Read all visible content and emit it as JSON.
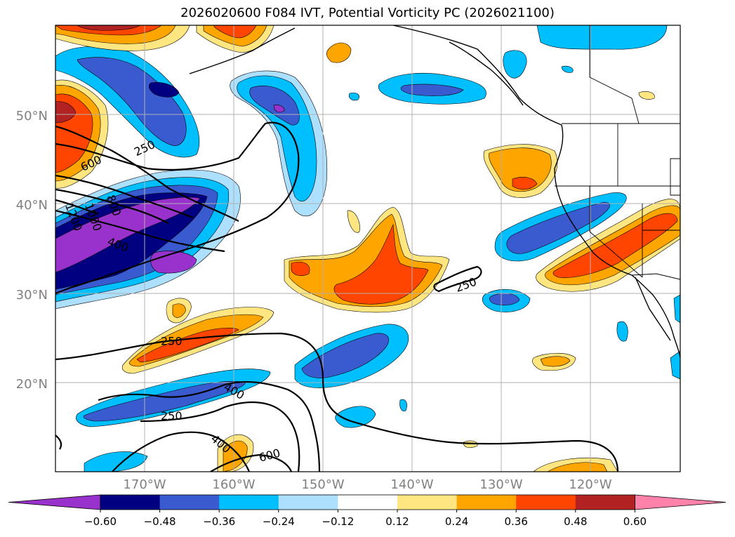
{
  "title": "2026020600 F084 IVT, Potential Vorticity PC (2026021100)",
  "map": {
    "lon_range": [
      -180,
      -110
    ],
    "lat_range": [
      10,
      60
    ],
    "lon_ticks": [
      -170,
      -160,
      -150,
      -140,
      -130,
      -120
    ],
    "lat_ticks": [
      20,
      30,
      40,
      50
    ],
    "lon_labels": [
      "170°W",
      "160°W",
      "150°W",
      "140°W",
      "130°W",
      "120°W"
    ],
    "lat_labels": [
      "20°N",
      "30°N",
      "40°N",
      "50°N"
    ]
  },
  "colorbar": {
    "levels": [
      -0.72,
      -0.6,
      -0.48,
      -0.36,
      -0.24,
      -0.12,
      0.12,
      0.24,
      0.36,
      0.48,
      0.6,
      0.72
    ],
    "colors": [
      "#9932CC",
      "#000080",
      "#3A5BCF",
      "#00BFFF",
      "#ADDFFF",
      "#FFFFFF",
      "#FFE680",
      "#FFA500",
      "#FF4500",
      "#B22222",
      "#FF82AB"
    ],
    "tick_labels": [
      "−0.60",
      "−0.48",
      "−0.36",
      "−0.24",
      "−0.12",
      "0.12",
      "0.24",
      "0.36",
      "0.48",
      "0.60"
    ]
  },
  "contours": {
    "labels": [
      {
        "text": "250",
        "lon": -170.0,
        "lat": 46.2,
        "angle": 25
      },
      {
        "text": "600",
        "lon": -176.0,
        "lat": 44.5,
        "angle": 25
      },
      {
        "text": "1000",
        "lon": -175.8,
        "lat": 38.5,
        "angle": -70
      },
      {
        "text": "800",
        "lon": -173.5,
        "lat": 39.8,
        "angle": -70
      },
      {
        "text": "1200",
        "lon": -178.0,
        "lat": 38.5,
        "angle": -70
      },
      {
        "text": "400",
        "lon": -173.0,
        "lat": 35.4,
        "angle": -20
      },
      {
        "text": "250",
        "lon": -167.0,
        "lat": 24.6,
        "angle": 0
      },
      {
        "text": "400",
        "lon": -160.0,
        "lat": 19.0,
        "angle": -30
      },
      {
        "text": "250",
        "lon": -167.0,
        "lat": 16.2,
        "angle": 0
      },
      {
        "text": "400",
        "lon": -161.5,
        "lat": 13.1,
        "angle": -40
      },
      {
        "text": "600",
        "lon": -156.0,
        "lat": 11.8,
        "angle": 15
      },
      {
        "text": "250",
        "lon": -134.0,
        "lat": 30.9,
        "angle": 20
      }
    ]
  },
  "chart_data": {
    "type": "heatmap",
    "title": "2026020600 F084 IVT, Potential Vorticity PC (2026021100)",
    "field": "Potential Vorticity PC (filled) with IVT contours (250, 400, 600, 800, 1000, 1200)",
    "colorbar_levels": [
      -0.6,
      -0.48,
      -0.36,
      -0.24,
      -0.12,
      0.12,
      0.24,
      0.36,
      0.48,
      0.6
    ],
    "ivt_contour_levels": [
      250,
      400,
      600,
      800,
      1000,
      1200
    ],
    "xlim": [
      -180,
      -110
    ],
    "ylim": [
      10,
      60
    ],
    "xlabel": "",
    "ylabel": ""
  }
}
